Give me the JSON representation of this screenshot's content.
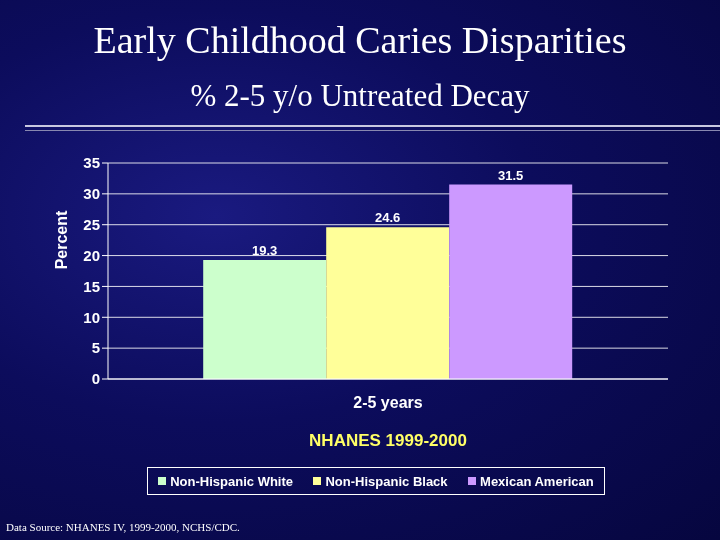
{
  "chart_data": {
    "type": "bar",
    "title": "Early Childhood Caries Disparities",
    "subtitle": "% 2-5 y/o Untreated Decay",
    "categories": [
      "2-5 years"
    ],
    "series": [
      {
        "name": "Non-Hispanic White",
        "color": "#ccffcc",
        "values": [
          19.3
        ]
      },
      {
        "name": "Non-Hispanic Black",
        "color": "#ffff99",
        "values": [
          24.6
        ]
      },
      {
        "name": "Mexican American",
        "color": "#cc99ff",
        "values": [
          31.5
        ]
      }
    ],
    "x_label": "NHANES 1999-2000",
    "y_label": "Percent",
    "ylim": [
      0,
      35
    ],
    "yticks": [
      0,
      5,
      10,
      15,
      20,
      25,
      30,
      35
    ],
    "grid": true,
    "data_labels": true,
    "legend": "bottom",
    "annotations": [
      "Data Source: NHANES IV, 1999-2000, NCHS/CDC."
    ]
  }
}
